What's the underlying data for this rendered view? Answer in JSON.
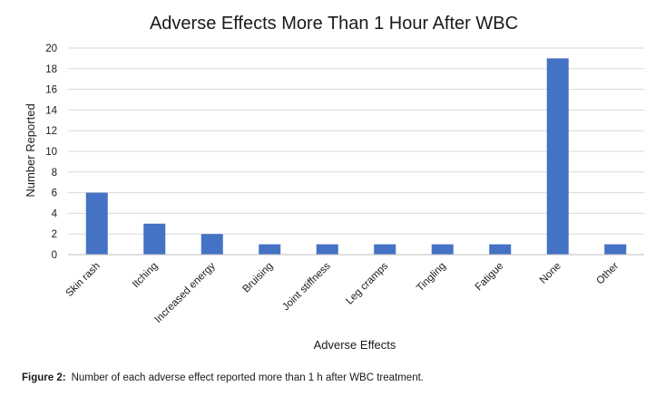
{
  "chart_data": {
    "type": "bar",
    "title": "Adverse Effects More Than 1 Hour After WBC",
    "xlabel": "Adverse Effects",
    "ylabel": "Number Reported",
    "categories": [
      "Skin rash",
      "Itching",
      "Increased energy",
      "Bruising",
      "Joint stiffness",
      "Leg cramps",
      "Tingling",
      "Fatigue",
      "None",
      "Other"
    ],
    "values": [
      6,
      3,
      2,
      1,
      1,
      1,
      1,
      1,
      19,
      1
    ],
    "ylim": [
      0,
      20
    ],
    "yticks": [
      0,
      2,
      4,
      6,
      8,
      10,
      12,
      14,
      16,
      18,
      20
    ],
    "grid": true,
    "legend": "none",
    "bar_color": "#4472C4",
    "grid_color": "#d9d9d9"
  },
  "caption": {
    "label": "Figure 2:",
    "text": "Number of each adverse effect reported more than 1 h after WBC treatment."
  }
}
